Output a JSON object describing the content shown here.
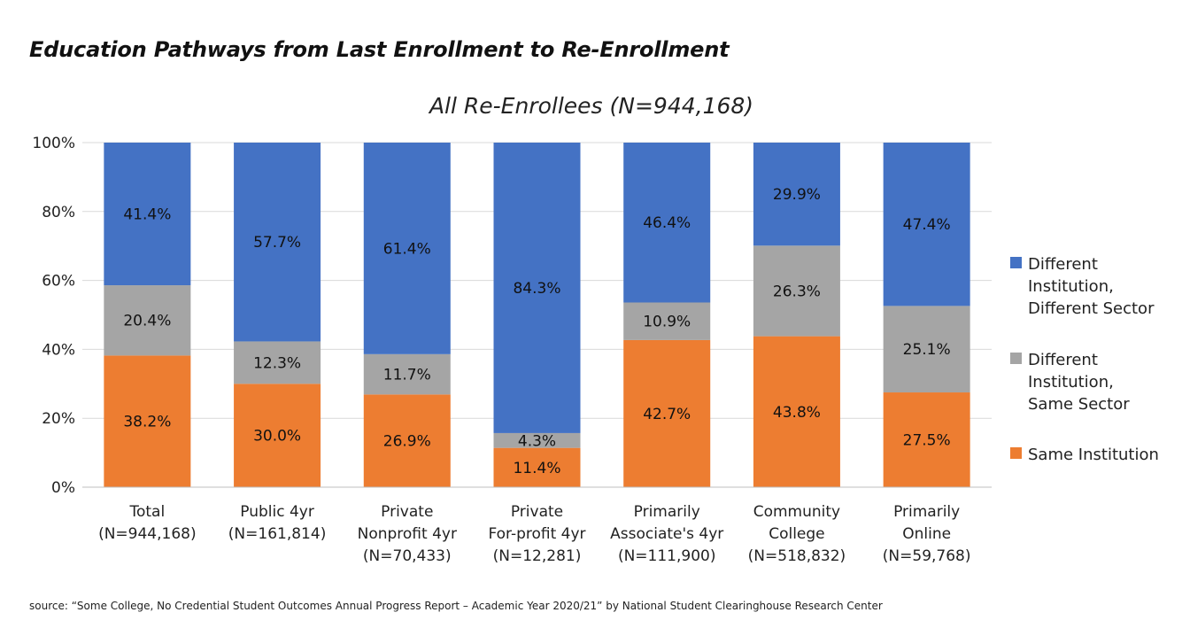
{
  "title": "Education Pathways from Last Enrollment to Re-Enrollment",
  "source": "source: “Some College, No Credential Student Outcomes Annual Progress Report – Academic Year 2020/21” by National Student Clearinghouse Research Center",
  "chart_data": {
    "type": "bar",
    "stacked": true,
    "subtitle": "All Re-Enrollees (N=944,168)",
    "categories": [
      [
        "Total",
        "(N=944,168)"
      ],
      [
        "Public 4yr",
        "(N=161,814)"
      ],
      [
        "Private",
        "Nonprofit 4yr",
        "(N=70,433)"
      ],
      [
        "Private",
        "For-profit 4yr",
        "(N=12,281)"
      ],
      [
        "Primarily",
        "Associate's 4yr",
        "(N=111,900)"
      ],
      [
        "Community",
        "College",
        "(N=518,832)"
      ],
      [
        "Primarily",
        "Online",
        "(N=59,768)"
      ]
    ],
    "series": [
      {
        "name": "Same Institution",
        "legend_lines": [
          "Same Institution"
        ],
        "color": "#ED7D31",
        "values": [
          38.2,
          30.0,
          26.9,
          11.4,
          42.7,
          43.8,
          27.5
        ],
        "labels": [
          "38.2%",
          "30.0%",
          "26.9%",
          "11.4%",
          "42.7%",
          "43.8%",
          "27.5%"
        ]
      },
      {
        "name": "Different Institution, Same Sector",
        "legend_lines": [
          "Different",
          "Institution,",
          "Same Sector"
        ],
        "color": "#A5A5A5",
        "values": [
          20.4,
          12.3,
          11.7,
          4.3,
          10.9,
          26.3,
          25.1
        ],
        "labels": [
          "20.4%",
          "12.3%",
          "11.7%",
          "4.3%",
          "10.9%",
          "26.3%",
          "25.1%"
        ]
      },
      {
        "name": "Different Institution, Different Sector",
        "legend_lines": [
          "Different",
          "Institution,",
          "Different Sector"
        ],
        "color": "#4472C4",
        "values": [
          41.4,
          57.7,
          61.4,
          84.3,
          46.4,
          29.9,
          47.4
        ],
        "labels": [
          "41.4%",
          "57.7%",
          "61.4%",
          "84.3%",
          "46.4%",
          "29.9%",
          "47.4%"
        ]
      }
    ],
    "y_ticks": [
      "0%",
      "20%",
      "40%",
      "60%",
      "80%",
      "100%"
    ],
    "ylim": [
      0,
      100
    ],
    "grid": true,
    "legend_position": "right"
  }
}
